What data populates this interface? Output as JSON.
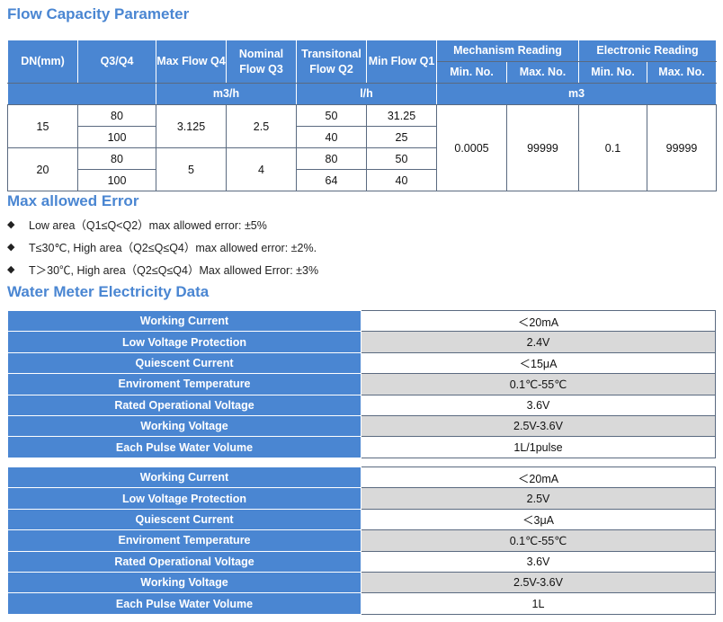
{
  "sections": {
    "flow_title": "Flow Capacity Parameter",
    "error_title": "Max allowed Error",
    "elec_title": "Water Meter Electricity Data"
  },
  "flow_table": {
    "headers": {
      "dn": "DN(mm)",
      "q3q4": "Q3/Q4",
      "max_flow": "Max Flow Q4",
      "nominal": "Nominal Flow Q3",
      "transitional": "Transitonal Flow Q2",
      "min_flow": "Min Flow Q1",
      "mechanism": "Mechanism Reading",
      "electronic": "Electronic Reading",
      "min_no": "Min. No.",
      "max_no": "Max. No.",
      "unit_m3h": "m3/h",
      "unit_lh": "l/h",
      "unit_m3": "m3"
    },
    "rows": [
      {
        "dn": "15",
        "q4": "3.125",
        "q3": "2.5",
        "sub": [
          {
            "ratio": "80",
            "q2": "50",
            "q1": "31.25"
          },
          {
            "ratio": "100",
            "q2": "40",
            "q1": "25"
          }
        ]
      },
      {
        "dn": "20",
        "q4": "5",
        "q3": "4",
        "sub": [
          {
            "ratio": "80",
            "q2": "80",
            "q1": "50"
          },
          {
            "ratio": "100",
            "q2": "64",
            "q1": "40"
          }
        ]
      }
    ],
    "mech_min": "0.0005",
    "mech_max": "99999",
    "elec_min": "0.1",
    "elec_max": "99999"
  },
  "errors": [
    "Low area（Q1≤Q<Q2）max allowed error: ±5%",
    "T≤30℃, High area（Q2≤Q≤Q4）max allowed error: ±2%.",
    "T＞30℃, High area（Q2≤Q≤Q4）Max allowed Error: ±3%"
  ],
  "elec_table_1": [
    {
      "label": "Working Current",
      "value": "＜20mA"
    },
    {
      "label": "Low Voltage Protection",
      "value": "2.4V"
    },
    {
      "label": "Quiescent Current",
      "value": "＜15μA"
    },
    {
      "label": "Enviroment Temperature",
      "value": "0.1℃-55℃"
    },
    {
      "label": "Rated Operational Voltage",
      "value": "3.6V"
    },
    {
      "label": "Working Voltage",
      "value": "2.5V-3.6V"
    },
    {
      "label": "Each Pulse Water Volume",
      "value": "1L/1pulse"
    }
  ],
  "elec_table_2": [
    {
      "label": "Working Current",
      "value": "＜20mA"
    },
    {
      "label": "Low Voltage Protection",
      "value": "2.5V"
    },
    {
      "label": "Quiescent Current",
      "value": "＜3μA"
    },
    {
      "label": "Enviroment Temperature",
      "value": "0.1℃-55℃"
    },
    {
      "label": "Rated Operational Voltage",
      "value": "3.6V"
    },
    {
      "label": "Working Voltage",
      "value": "2.5V-3.6V"
    },
    {
      "label": "Each Pulse Water Volume",
      "value": "1L"
    }
  ]
}
